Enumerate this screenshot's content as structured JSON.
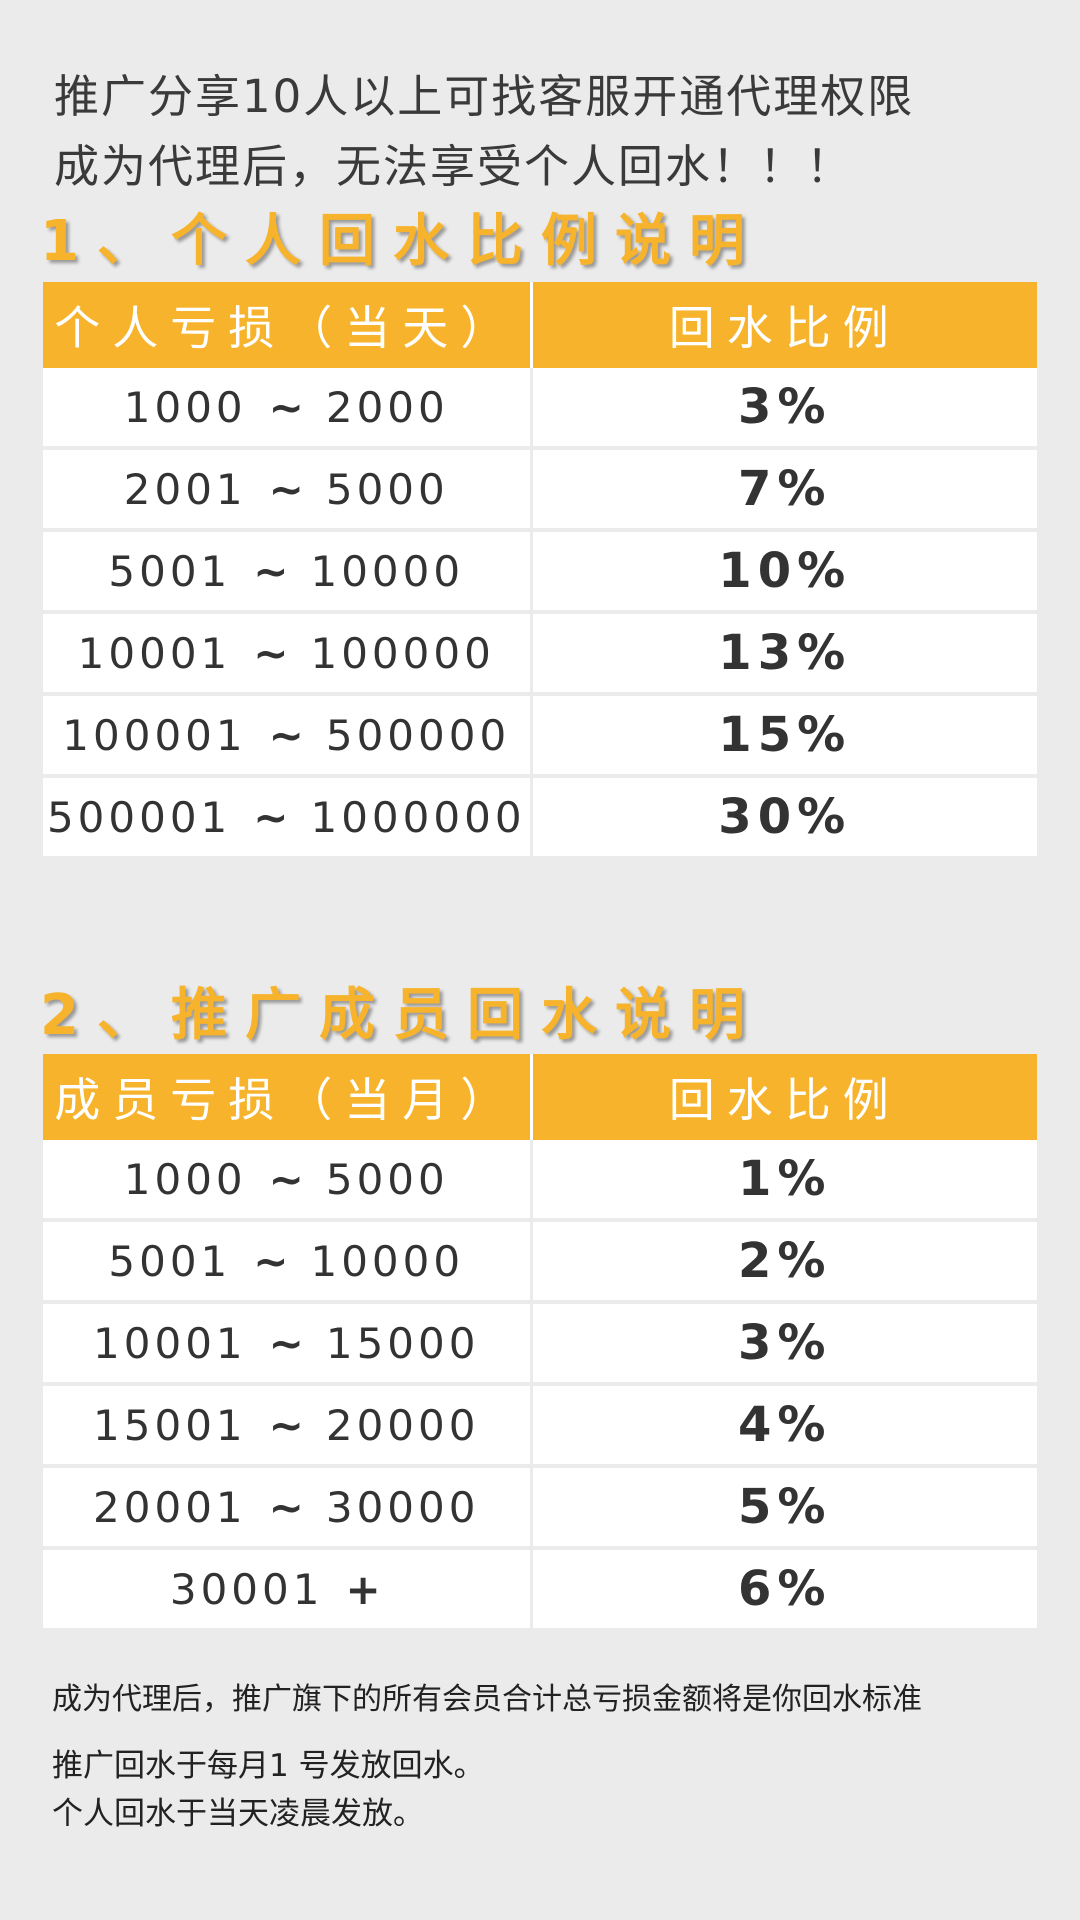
{
  "intro": {
    "line1": "推广分享10人以上可找客服开通代理权限",
    "line2": "成为代理后，无法享受个人回水！！！"
  },
  "sections": [
    {
      "title": "1、个人回水比例说明",
      "headers": [
        "个人亏损（当天）",
        "回水比例"
      ],
      "rows": [
        {
          "from": "1000",
          "sep": "~",
          "to": "2000",
          "rate": "3%"
        },
        {
          "from": "2001",
          "sep": "~",
          "to": "5000",
          "rate": "7%"
        },
        {
          "from": "5001",
          "sep": "~",
          "to": "10000",
          "rate": "10%"
        },
        {
          "from": "10001",
          "sep": "~",
          "to": "100000",
          "rate": "13%"
        },
        {
          "from": "100001",
          "sep": "~",
          "to": "500000",
          "rate": "15%"
        },
        {
          "from": "500001",
          "sep": "~",
          "to": "1000000",
          "rate": "30%"
        }
      ]
    },
    {
      "title": "2、推广成员回水说明",
      "headers": [
        "成员亏损（当月）",
        "回水比例"
      ],
      "rows": [
        {
          "from": "1000",
          "sep": "~",
          "to": "5000",
          "rate": "1%"
        },
        {
          "from": "5001",
          "sep": "~",
          "to": "10000",
          "rate": "2%"
        },
        {
          "from": "10001",
          "sep": "~",
          "to": "15000",
          "rate": "3%"
        },
        {
          "from": "15001",
          "sep": "~",
          "to": "20000",
          "rate": "4%"
        },
        {
          "from": "20001",
          "sep": "~",
          "to": "30000",
          "rate": "5%"
        },
        {
          "from": "30001",
          "sep": "+",
          "to": "",
          "rate": "6%"
        }
      ]
    }
  ],
  "notes": {
    "line1": "成为代理后，推广旗下的所有会员合计总亏损金额将是你回水标准",
    "line2": "推广回水于每月1 号发放回水。",
    "line3": "个人回水于当天凌晨发放。"
  },
  "colors": {
    "accent": "#f6b32b",
    "background": "#ebebeb",
    "cell": "#ffffff"
  }
}
